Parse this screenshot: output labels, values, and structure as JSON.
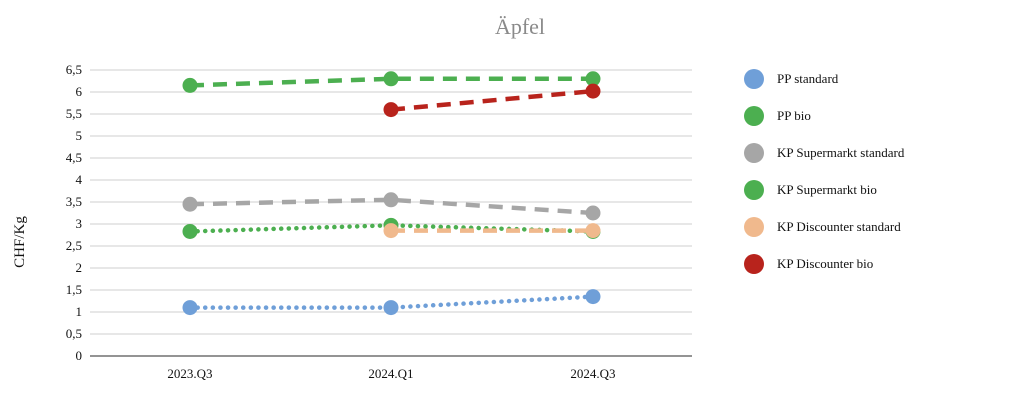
{
  "chart_data": {
    "type": "line",
    "title": "Äpfel",
    "xlabel": "",
    "ylabel": "CHF/Kg",
    "categories": [
      "2023.Q3",
      "2024.Q1",
      "2024.Q3"
    ],
    "ylim": [
      0,
      6.5
    ],
    "yticks": [
      "0",
      "0,5",
      "1",
      "1,5",
      "2",
      "2,5",
      "3",
      "3,5",
      "4",
      "4,5",
      "5",
      "5,5",
      "6",
      "6,5"
    ],
    "grid": true,
    "legend_position": "right",
    "series": [
      {
        "name": "PP standard",
        "color": "#6f9fd8",
        "dash": "dotted",
        "values": [
          1.1,
          1.1,
          1.35
        ]
      },
      {
        "name": "PP bio",
        "color": "#4caf50",
        "dash": "dashed",
        "values": [
          6.15,
          6.3,
          6.3
        ]
      },
      {
        "name": "KP Supermarkt standard",
        "color": "#a6a6a6",
        "dash": "dashed",
        "values": [
          3.45,
          3.55,
          3.25
        ]
      },
      {
        "name": "KP Supermarkt bio",
        "color": "#4caf50",
        "dash": "dotted",
        "values": [
          2.83,
          2.97,
          2.83
        ]
      },
      {
        "name": "KP Discounter standard",
        "color": "#f0b98d",
        "dash": "dashed",
        "values": [
          null,
          2.85,
          2.85
        ]
      },
      {
        "name": "KP Discounter bio",
        "color": "#b8231c",
        "dash": "dashed",
        "values": [
          null,
          5.6,
          6.02
        ]
      }
    ]
  }
}
